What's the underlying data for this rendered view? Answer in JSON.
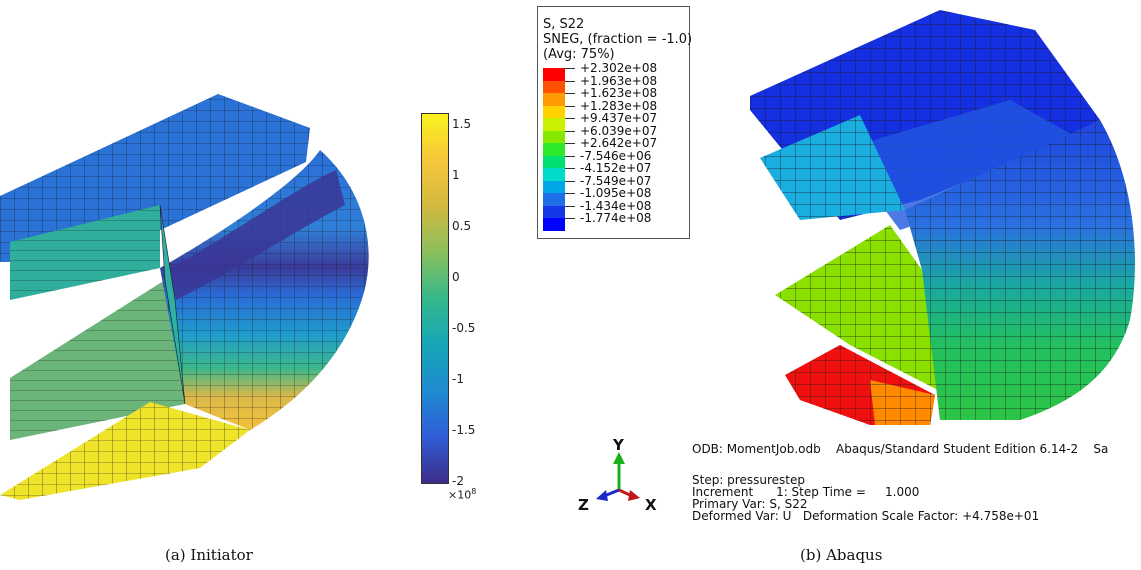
{
  "left_panel": {
    "caption": "(a) Initiator",
    "colorbar": {
      "ticks": [
        "1.5",
        "1",
        "0.5",
        "0",
        "-0.5",
        "-1",
        "-1.5",
        "-2"
      ],
      "exponent": "×10",
      "exponent_power": "8",
      "colors": [
        "#3e2d89",
        "#2f5fd8",
        "#1f8bd0",
        "#17a7b6",
        "#35b88a",
        "#8cbf5a",
        "#d2b941",
        "#f7c83a",
        "#f9f21f"
      ]
    }
  },
  "right_panel": {
    "caption": "(b) Abaqus",
    "legend": {
      "title_lines": [
        "S, S22",
        "SNEG, (fraction = -1.0)",
        "(Avg: 75%)"
      ],
      "values": [
        "+2.302e+08",
        "+1.963e+08",
        "+1.623e+08",
        "+1.283e+08",
        "+9.437e+07",
        "+6.039e+07",
        "+2.642e+07",
        "-7.546e+06",
        "-4.152e+07",
        "-7.549e+07",
        "-1.095e+08",
        "-1.434e+08",
        "-1.774e+08"
      ],
      "colors": [
        "#ff0000",
        "#ff5000",
        "#ff9a00",
        "#ffd200",
        "#c8f000",
        "#86e800",
        "#2ee82a",
        "#00e070",
        "#00dcc8",
        "#00a8e8",
        "#1e6ee8",
        "#1437e8",
        "#0000ff"
      ]
    },
    "triad": {
      "y": "Y",
      "z": "Z",
      "x": "X"
    },
    "info": {
      "line1": "ODB: MomentJob.odb    Abaqus/Standard Student Edition 6.14-2    Sa",
      "line2": "Step: pressurestep",
      "line3": "Increment      1: Step Time =     1.000",
      "line4": "Primary Var: S, S22",
      "line5": "Deformed Var: U   Deformation Scale Factor: +4.758e+01"
    }
  }
}
